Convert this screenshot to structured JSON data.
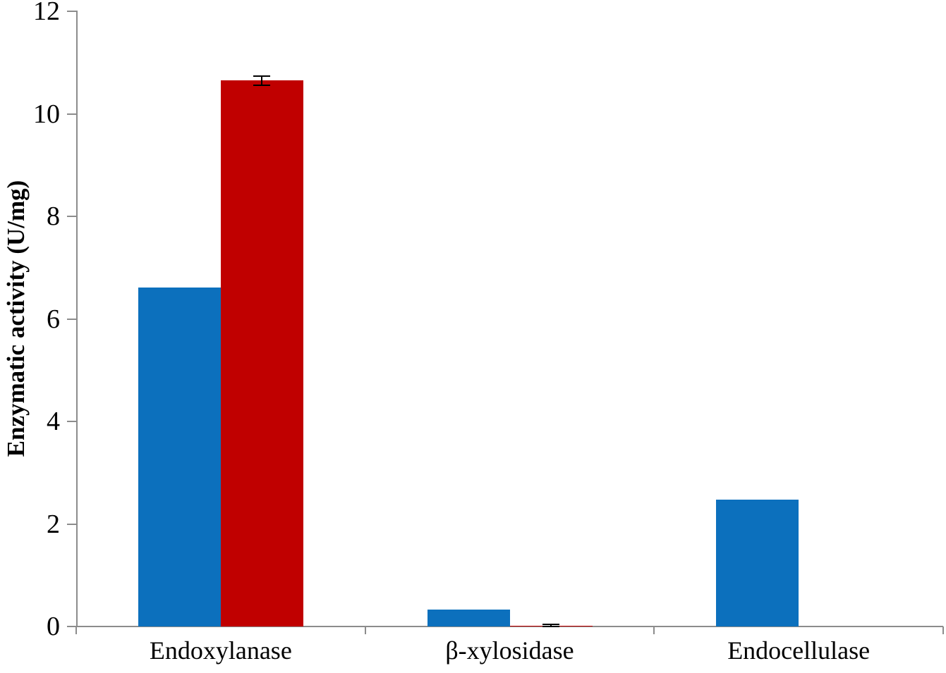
{
  "chart_data": {
    "type": "bar",
    "title": "",
    "xlabel": "",
    "ylabel": "Enzymatic activity (U/mg)",
    "ylim": [
      0,
      12
    ],
    "yticks": [
      0,
      2,
      4,
      6,
      8,
      10,
      12
    ],
    "grid": false,
    "legend": "none",
    "axis_color": "#8c8c8c",
    "error_bar_color": "#000000",
    "categories": [
      "Endoxylanase",
      "β-xylosidase",
      "Endocellulase"
    ],
    "series": [
      {
        "name": "blue",
        "color": "#0c70bd",
        "values": [
          6.61,
          0.33,
          2.47
        ],
        "errors": [
          0,
          0,
          0
        ]
      },
      {
        "name": "red",
        "color": "#c00000",
        "values": [
          10.65,
          0.02,
          0
        ],
        "errors": [
          0.09,
          0.015,
          0
        ]
      }
    ]
  }
}
